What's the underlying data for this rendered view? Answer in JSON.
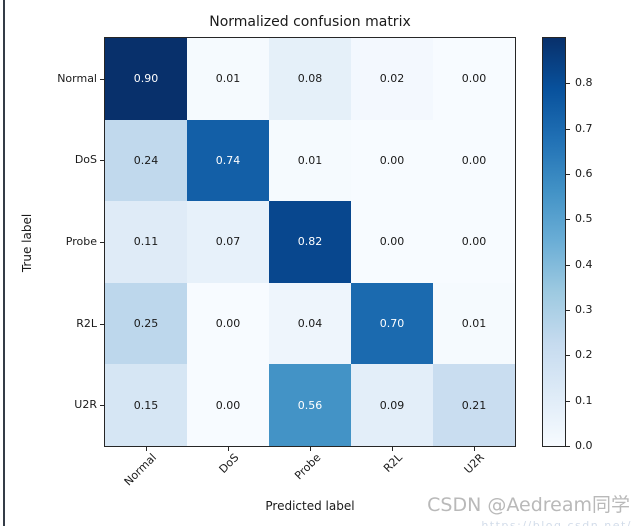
{
  "chart_data": {
    "type": "heatmap",
    "title": "Normalized confusion matrix",
    "xlabel": "Predicted label",
    "ylabel": "True label",
    "x_categories": [
      "Normal",
      "DoS",
      "Probe",
      "R2L",
      "U2R"
    ],
    "y_categories": [
      "Normal",
      "DoS",
      "Probe",
      "R2L",
      "U2R"
    ],
    "matrix": [
      [
        0.9,
        0.01,
        0.08,
        0.02,
        0.0
      ],
      [
        0.24,
        0.74,
        0.01,
        0.0,
        0.0
      ],
      [
        0.11,
        0.07,
        0.82,
        0.0,
        0.0
      ],
      [
        0.25,
        0.0,
        0.04,
        0.7,
        0.01
      ],
      [
        0.15,
        0.0,
        0.56,
        0.09,
        0.21
      ]
    ],
    "value_decimals": 2,
    "vmin": 0.0,
    "vmax": 0.9,
    "colormap": "Blues",
    "colormap_stops": [
      "#f7fbff",
      "#deebf7",
      "#c6dbef",
      "#9ecae1",
      "#6baed6",
      "#4292c6",
      "#2171b5",
      "#08519c",
      "#08306b"
    ],
    "colorbar": {
      "position": "right",
      "ticks": [
        0.0,
        0.1,
        0.2,
        0.3,
        0.4,
        0.5,
        0.6,
        0.7,
        0.8
      ],
      "tick_decimals": 1
    },
    "grid": false,
    "x_tick_rotation_deg": 45
  },
  "colors": {
    "cell_text_dark": "#1a1a1a",
    "cell_text_light": "#ffffff",
    "spine": "#262626",
    "watermark_gray": "#b9b9b9"
  },
  "watermark": {
    "text": "CSDN @Aedream同学",
    "partial_bottom_text": "https://blog.csdn.net/"
  }
}
